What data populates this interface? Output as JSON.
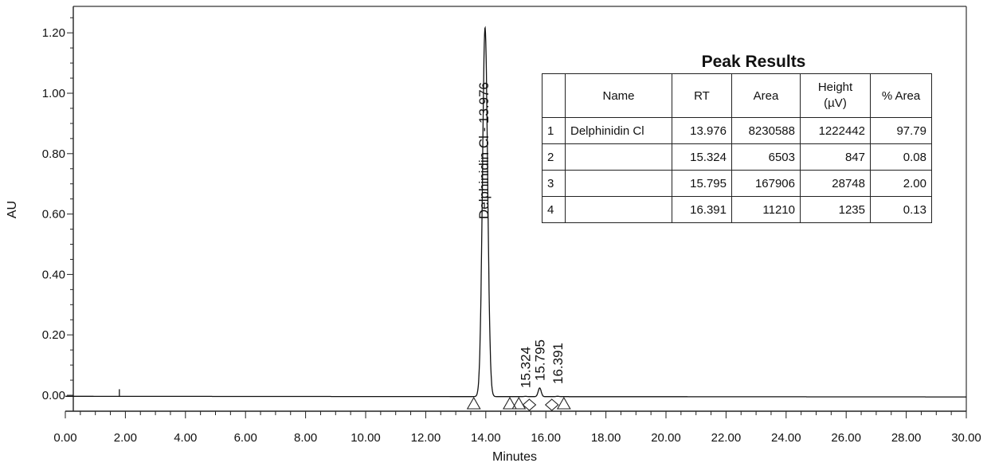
{
  "chart_data": {
    "type": "line",
    "xlabel": "Minutes",
    "ylabel": "AU",
    "xlim": [
      0,
      30
    ],
    "ylim": [
      -0.05,
      1.27
    ],
    "x_ticks": [
      "0.00",
      "2.00",
      "4.00",
      "6.00",
      "8.00",
      "10.00",
      "12.00",
      "14.00",
      "16.00",
      "18.00",
      "20.00",
      "22.00",
      "24.00",
      "26.00",
      "28.00",
      "30.00"
    ],
    "y_ticks": [
      "0.00",
      "0.20",
      "0.40",
      "0.60",
      "0.80",
      "1.00",
      "1.20"
    ],
    "grid": false,
    "peaks": [
      {
        "label": "Delphinidin Cl - 13.976",
        "rt": 13.976,
        "height_au": 1.2224
      },
      {
        "label": "15.324",
        "rt": 15.324,
        "height_au": 0.0008
      },
      {
        "label": "15.795",
        "rt": 15.795,
        "height_au": 0.0287
      },
      {
        "label": "16.391",
        "rt": 16.391,
        "height_au": 0.0012
      }
    ],
    "integration_markers": [
      {
        "x": 13.6,
        "symbol": "triangle"
      },
      {
        "x": 14.8,
        "symbol": "triangle"
      },
      {
        "x": 15.1,
        "symbol": "triangle"
      },
      {
        "x": 15.45,
        "symbol": "diamond"
      },
      {
        "x": 16.2,
        "symbol": "diamond"
      },
      {
        "x": 16.6,
        "symbol": "triangle"
      }
    ],
    "baseline_spike": {
      "x": 1.8,
      "y": 0.02
    }
  },
  "results_table": {
    "title": "Peak Results",
    "headers": [
      "",
      "Name",
      "RT",
      "Area",
      "Height (µV)",
      "% Area"
    ],
    "rows": [
      [
        "1",
        "Delphinidin Cl",
        "13.976",
        "8230588",
        "1222442",
        "97.79"
      ],
      [
        "2",
        "",
        "15.324",
        "6503",
        "847",
        "0.08"
      ],
      [
        "3",
        "",
        "15.795",
        "167906",
        "28748",
        "2.00"
      ],
      [
        "4",
        "",
        "16.391",
        "11210",
        "1235",
        "0.13"
      ]
    ]
  }
}
